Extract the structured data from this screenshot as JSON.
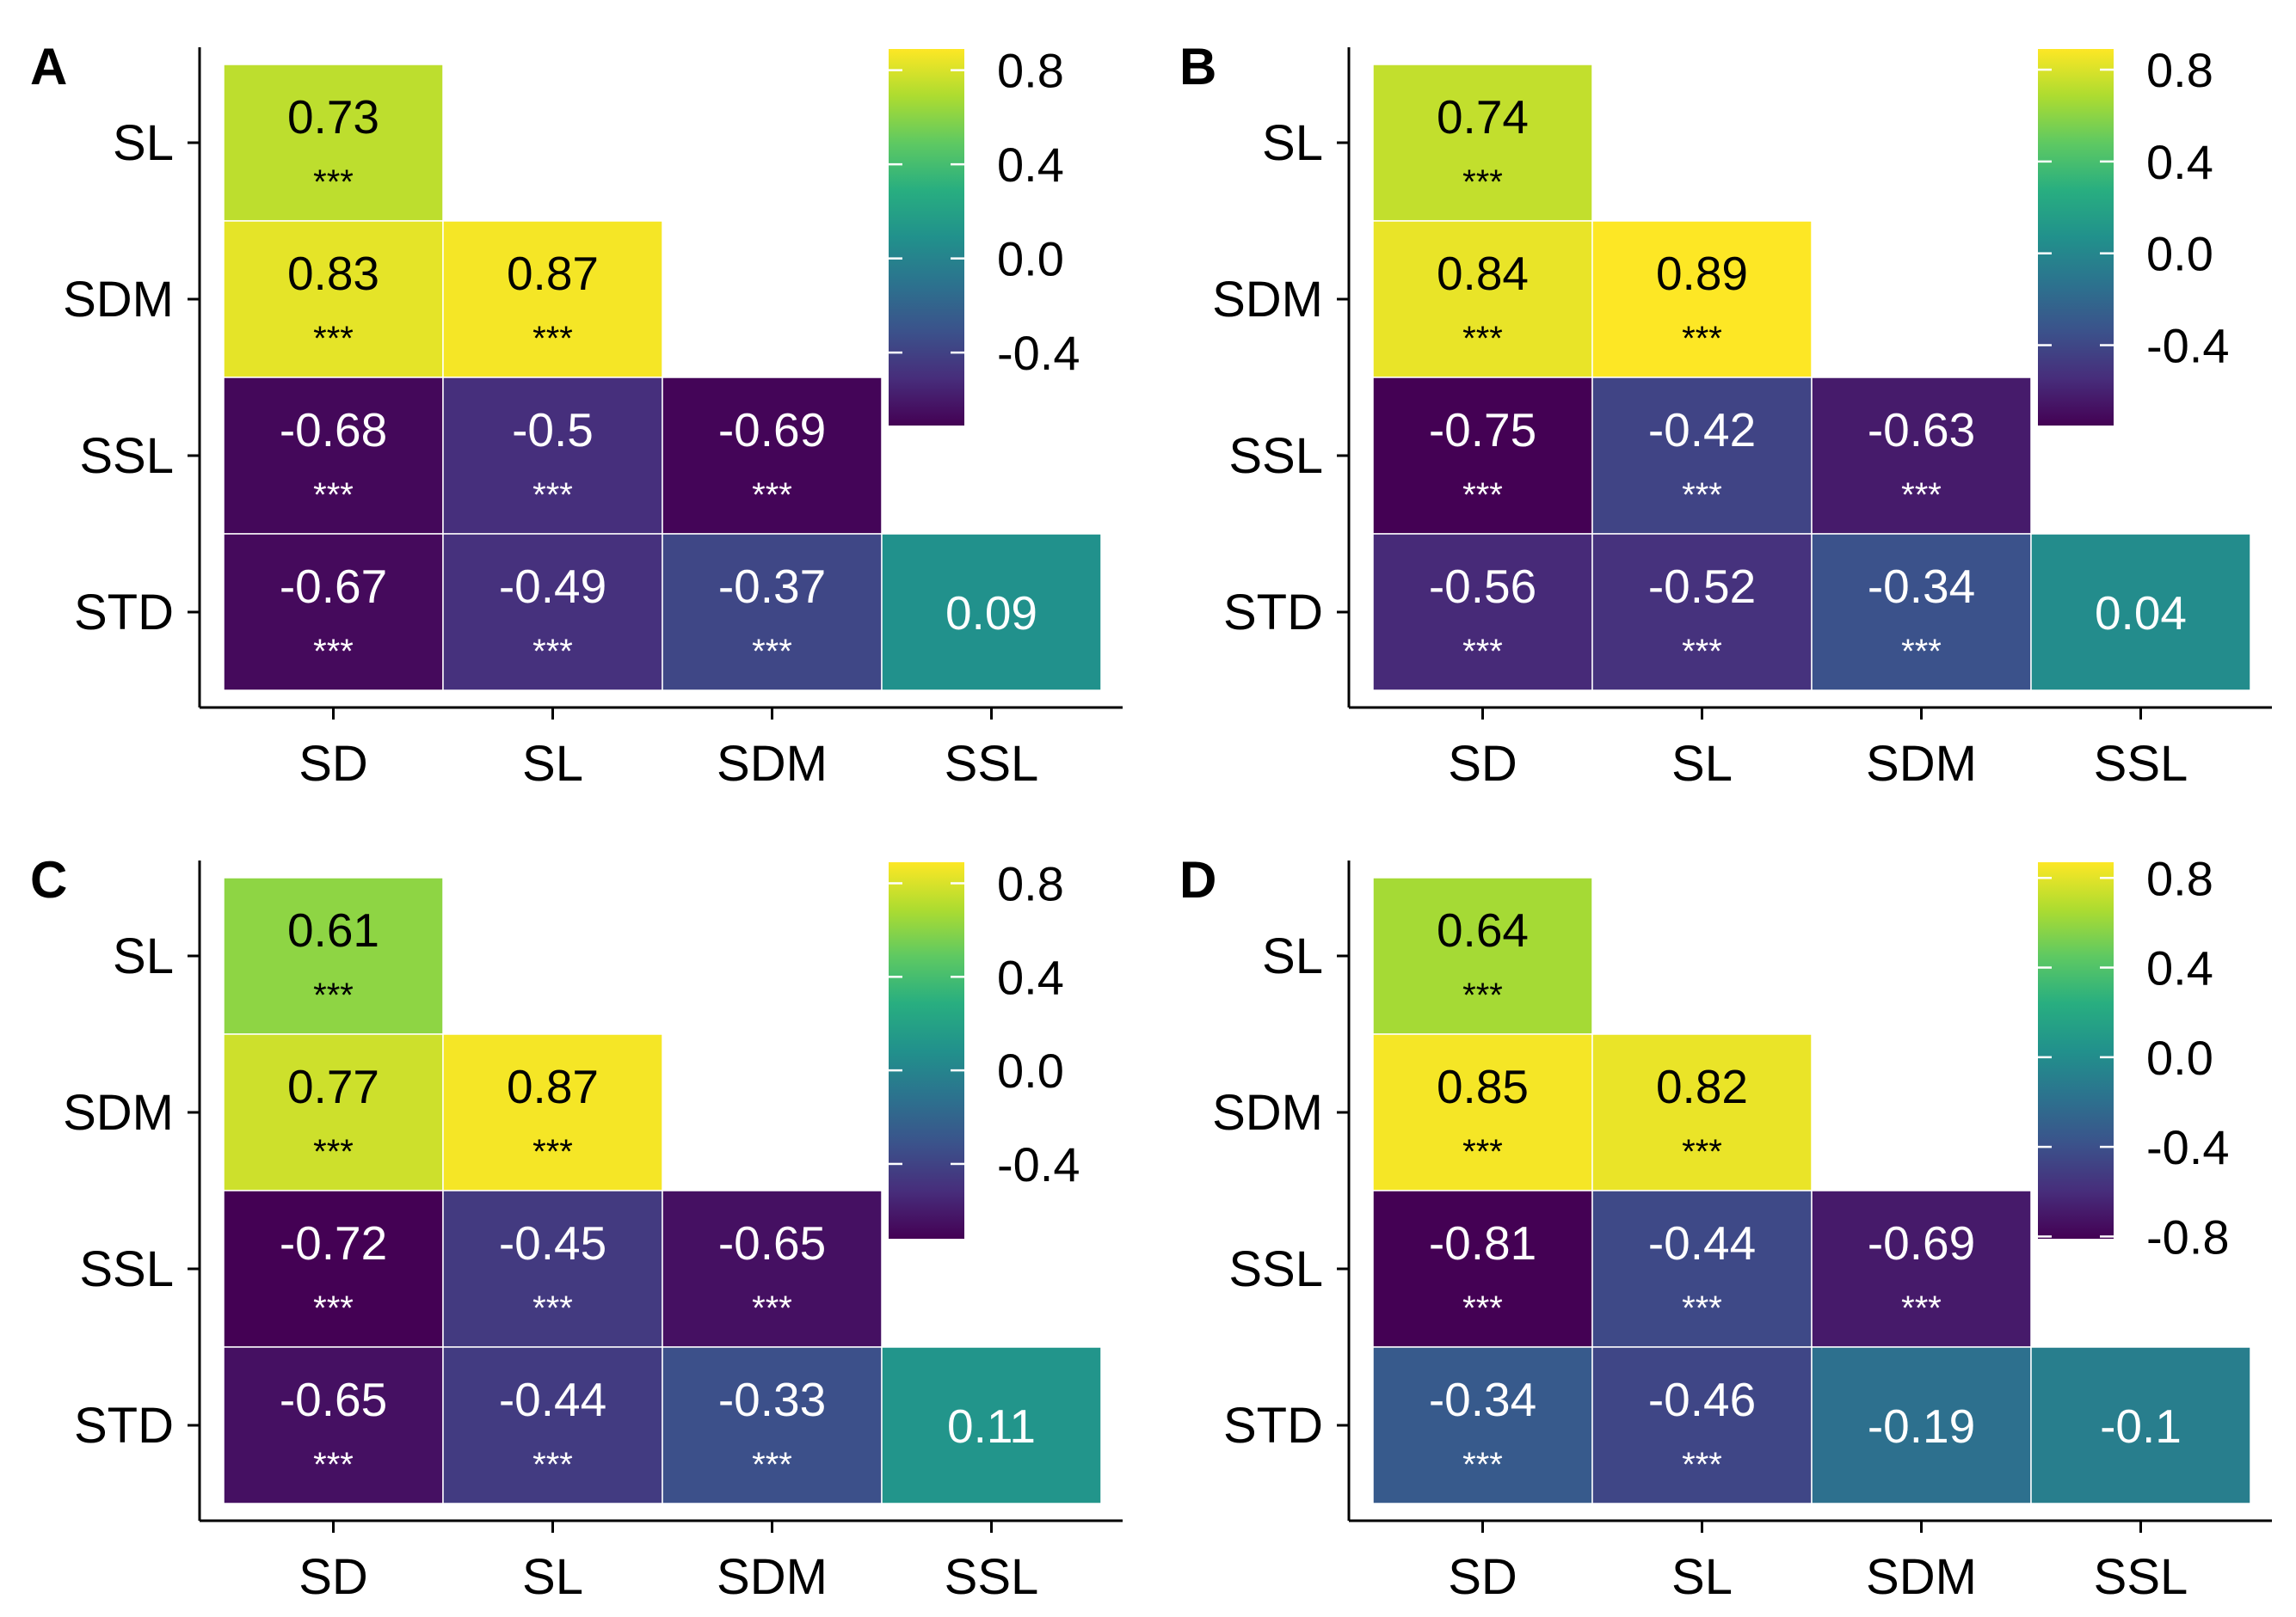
{
  "chart_data": [
    {
      "panel": "A",
      "type": "heatmap",
      "x_categories": [
        "SD",
        "SL",
        "SDM",
        "SSL"
      ],
      "y_categories": [
        "SL",
        "SDM",
        "SSL",
        "STD"
      ],
      "cells": [
        {
          "row": "SL",
          "col": "SD",
          "value": 0.73,
          "label": "0.73",
          "sig": "***"
        },
        {
          "row": "SDM",
          "col": "SD",
          "value": 0.83,
          "label": "0.83",
          "sig": "***"
        },
        {
          "row": "SDM",
          "col": "SL",
          "value": 0.87,
          "label": "0.87",
          "sig": "***"
        },
        {
          "row": "SSL",
          "col": "SD",
          "value": -0.68,
          "label": "-0.68",
          "sig": "***"
        },
        {
          "row": "SSL",
          "col": "SL",
          "value": -0.5,
          "label": "-0.5",
          "sig": "***"
        },
        {
          "row": "SSL",
          "col": "SDM",
          "value": -0.69,
          "label": "-0.69",
          "sig": "***"
        },
        {
          "row": "STD",
          "col": "SD",
          "value": -0.67,
          "label": "-0.67",
          "sig": "***"
        },
        {
          "row": "STD",
          "col": "SL",
          "value": -0.49,
          "label": "-0.49",
          "sig": "***"
        },
        {
          "row": "STD",
          "col": "SDM",
          "value": -0.37,
          "label": "-0.37",
          "sig": "***"
        },
        {
          "row": "STD",
          "col": "SSL",
          "value": 0.09,
          "label": "0.09",
          "sig": ""
        }
      ],
      "legend": {
        "ticks": [
          "0.8",
          "0.4",
          "0.0",
          "-0.4"
        ],
        "tick_values": [
          0.8,
          0.4,
          0.0,
          -0.4
        ],
        "range": [
          -0.71,
          0.89
        ]
      }
    },
    {
      "panel": "B",
      "type": "heatmap",
      "x_categories": [
        "SD",
        "SL",
        "SDM",
        "SSL"
      ],
      "y_categories": [
        "SL",
        "SDM",
        "SSL",
        "STD"
      ],
      "cells": [
        {
          "row": "SL",
          "col": "SD",
          "value": 0.74,
          "label": "0.74",
          "sig": "***"
        },
        {
          "row": "SDM",
          "col": "SD",
          "value": 0.84,
          "label": "0.84",
          "sig": "***"
        },
        {
          "row": "SDM",
          "col": "SL",
          "value": 0.89,
          "label": "0.89",
          "sig": "***"
        },
        {
          "row": "SSL",
          "col": "SD",
          "value": -0.75,
          "label": "-0.75",
          "sig": "***"
        },
        {
          "row": "SSL",
          "col": "SL",
          "value": -0.42,
          "label": "-0.42",
          "sig": "***"
        },
        {
          "row": "SSL",
          "col": "SDM",
          "value": -0.63,
          "label": "-0.63",
          "sig": "***"
        },
        {
          "row": "STD",
          "col": "SD",
          "value": -0.56,
          "label": "-0.56",
          "sig": "***"
        },
        {
          "row": "STD",
          "col": "SL",
          "value": -0.52,
          "label": "-0.52",
          "sig": "***"
        },
        {
          "row": "STD",
          "col": "SDM",
          "value": -0.34,
          "label": "-0.34",
          "sig": "***"
        },
        {
          "row": "STD",
          "col": "SSL",
          "value": 0.04,
          "label": "0.04",
          "sig": ""
        }
      ],
      "legend": {
        "ticks": [
          "0.8",
          "0.4",
          "0.0",
          "-0.4"
        ],
        "tick_values": [
          0.8,
          0.4,
          0.0,
          -0.4
        ],
        "range": [
          -0.75,
          0.89
        ]
      }
    },
    {
      "panel": "C",
      "type": "heatmap",
      "x_categories": [
        "SD",
        "SL",
        "SDM",
        "SSL"
      ],
      "y_categories": [
        "SL",
        "SDM",
        "SSL",
        "STD"
      ],
      "cells": [
        {
          "row": "SL",
          "col": "SD",
          "value": 0.61,
          "label": "0.61",
          "sig": "***"
        },
        {
          "row": "SDM",
          "col": "SD",
          "value": 0.77,
          "label": "0.77",
          "sig": "***"
        },
        {
          "row": "SDM",
          "col": "SL",
          "value": 0.87,
          "label": "0.87",
          "sig": "***"
        },
        {
          "row": "SSL",
          "col": "SD",
          "value": -0.72,
          "label": "-0.72",
          "sig": "***"
        },
        {
          "row": "SSL",
          "col": "SL",
          "value": -0.45,
          "label": "-0.45",
          "sig": "***"
        },
        {
          "row": "SSL",
          "col": "SDM",
          "value": -0.65,
          "label": "-0.65",
          "sig": "***"
        },
        {
          "row": "STD",
          "col": "SD",
          "value": -0.65,
          "label": "-0.65",
          "sig": "***"
        },
        {
          "row": "STD",
          "col": "SL",
          "value": -0.44,
          "label": "-0.44",
          "sig": "***"
        },
        {
          "row": "STD",
          "col": "SDM",
          "value": -0.33,
          "label": "-0.33",
          "sig": "***"
        },
        {
          "row": "STD",
          "col": "SSL",
          "value": 0.11,
          "label": "0.11",
          "sig": ""
        }
      ],
      "legend": {
        "ticks": [
          "0.8",
          "0.4",
          "0.0",
          "-0.4"
        ],
        "tick_values": [
          0.8,
          0.4,
          0.0,
          -0.4
        ],
        "range": [
          -0.72,
          0.89
        ]
      }
    },
    {
      "panel": "D",
      "type": "heatmap",
      "x_categories": [
        "SD",
        "SL",
        "SDM",
        "SSL"
      ],
      "y_categories": [
        "SL",
        "SDM",
        "SSL",
        "STD"
      ],
      "cells": [
        {
          "row": "SL",
          "col": "SD",
          "value": 0.64,
          "label": "0.64",
          "sig": "***"
        },
        {
          "row": "SDM",
          "col": "SD",
          "value": 0.85,
          "label": "0.85",
          "sig": "***"
        },
        {
          "row": "SDM",
          "col": "SL",
          "value": 0.82,
          "label": "0.82",
          "sig": "***"
        },
        {
          "row": "SSL",
          "col": "SD",
          "value": -0.81,
          "label": "-0.81",
          "sig": "***"
        },
        {
          "row": "SSL",
          "col": "SL",
          "value": -0.44,
          "label": "-0.44",
          "sig": "***"
        },
        {
          "row": "SSL",
          "col": "SDM",
          "value": -0.69,
          "label": "-0.69",
          "sig": "***"
        },
        {
          "row": "STD",
          "col": "SD",
          "value": -0.34,
          "label": "-0.34",
          "sig": "***"
        },
        {
          "row": "STD",
          "col": "SL",
          "value": -0.46,
          "label": "-0.46",
          "sig": "***"
        },
        {
          "row": "STD",
          "col": "SDM",
          "value": -0.19,
          "label": "-0.19",
          "sig": ""
        },
        {
          "row": "STD",
          "col": "SSL",
          "value": -0.1,
          "label": "-0.1",
          "sig": ""
        }
      ],
      "legend": {
        "ticks": [
          "0.8",
          "0.4",
          "0.0",
          "-0.4",
          "-0.8"
        ],
        "tick_values": [
          0.8,
          0.4,
          0.0,
          -0.4,
          -0.8
        ],
        "range": [
          -0.81,
          0.87
        ]
      }
    }
  ]
}
